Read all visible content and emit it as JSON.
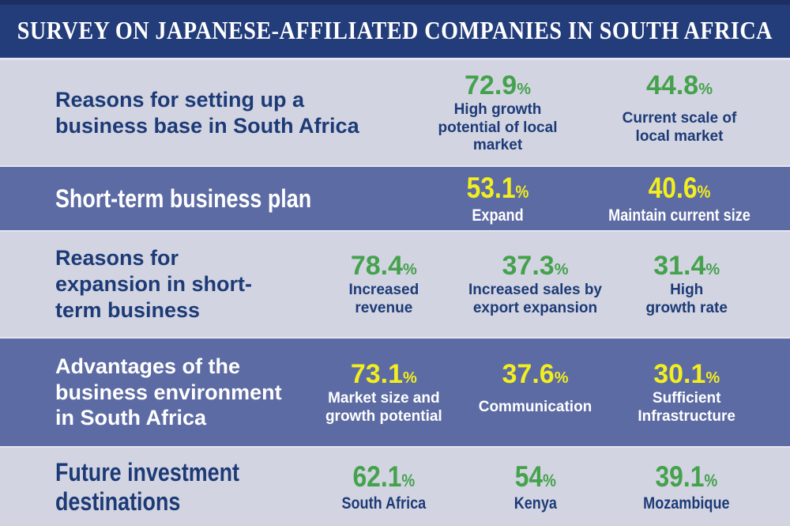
{
  "header": {
    "title": "SURVEY ON JAPANESE-AFFILIATED COMPANIES IN SOUTH AFRICA"
  },
  "colors": {
    "header_bg": "#233d7b",
    "light_row_bg": "#d3d4e2",
    "blue_row_bg": "#5c6ba3",
    "navy_text": "#1c3b76",
    "green_number": "#44a24c",
    "yellow_number": "#f2ee1f",
    "white_text": "#ffffff"
  },
  "rows": [
    {
      "title": "Reasons for setting up a\nbusiness base in South Africa",
      "stats": [
        {
          "value": "72.9",
          "unit": "%",
          "label": "High growth\npotential of local\nmarket"
        },
        {
          "value": "44.8",
          "unit": "%",
          "label": "Current scale of\nlocal market"
        }
      ]
    },
    {
      "title": "Short-term business plan",
      "stats": [
        {
          "value": "53.1",
          "unit": "%",
          "label": "Expand"
        },
        {
          "value": "40.6",
          "unit": "%",
          "label": "Maintain current size"
        }
      ]
    },
    {
      "title": "Reasons for\nexpansion in short-\nterm business",
      "stats": [
        {
          "value": "78.4",
          "unit": "%",
          "label": "Increased\nrevenue"
        },
        {
          "value": "37.3",
          "unit": "%",
          "label": "Increased sales by\nexport expansion"
        },
        {
          "value": "31.4",
          "unit": "%",
          "label": "High\ngrowth rate"
        }
      ]
    },
    {
      "title": "Advantages of the\nbusiness environment\nin South Africa",
      "stats": [
        {
          "value": "73.1",
          "unit": "%",
          "label": "Market size and\ngrowth potential"
        },
        {
          "value": "37.6",
          "unit": "%",
          "label": "Communication"
        },
        {
          "value": "30.1",
          "unit": "%",
          "label": "Sufficient\nInfrastructure"
        }
      ]
    },
    {
      "title": "Future investment\ndestinations",
      "stats": [
        {
          "value": "62.1",
          "unit": "%",
          "label": "South Africa"
        },
        {
          "value": "54",
          "unit": "%",
          "label": "Kenya"
        },
        {
          "value": "39.1",
          "unit": "%",
          "label": "Mozambique"
        }
      ]
    }
  ],
  "chart_data": [
    {
      "type": "bar",
      "title": "Reasons for setting up a business base in South Africa",
      "categories": [
        "High growth potential of local market",
        "Current scale of local market"
      ],
      "values": [
        72.9,
        44.8
      ],
      "unit": "%"
    },
    {
      "type": "bar",
      "title": "Short-term business plan",
      "categories": [
        "Expand",
        "Maintain current size"
      ],
      "values": [
        53.1,
        40.6
      ],
      "unit": "%"
    },
    {
      "type": "bar",
      "title": "Reasons for expansion in short-term business",
      "categories": [
        "Increased revenue",
        "Increased sales by export expansion",
        "High growth rate"
      ],
      "values": [
        78.4,
        37.3,
        31.4
      ],
      "unit": "%"
    },
    {
      "type": "bar",
      "title": "Advantages of the business environment in South Africa",
      "categories": [
        "Market size and growth potential",
        "Communication",
        "Sufficient Infrastructure"
      ],
      "values": [
        73.1,
        37.6,
        30.1
      ],
      "unit": "%"
    },
    {
      "type": "bar",
      "title": "Future investment destinations",
      "categories": [
        "South Africa",
        "Kenya",
        "Mozambique"
      ],
      "values": [
        62.1,
        54,
        39.1
      ],
      "unit": "%"
    }
  ]
}
